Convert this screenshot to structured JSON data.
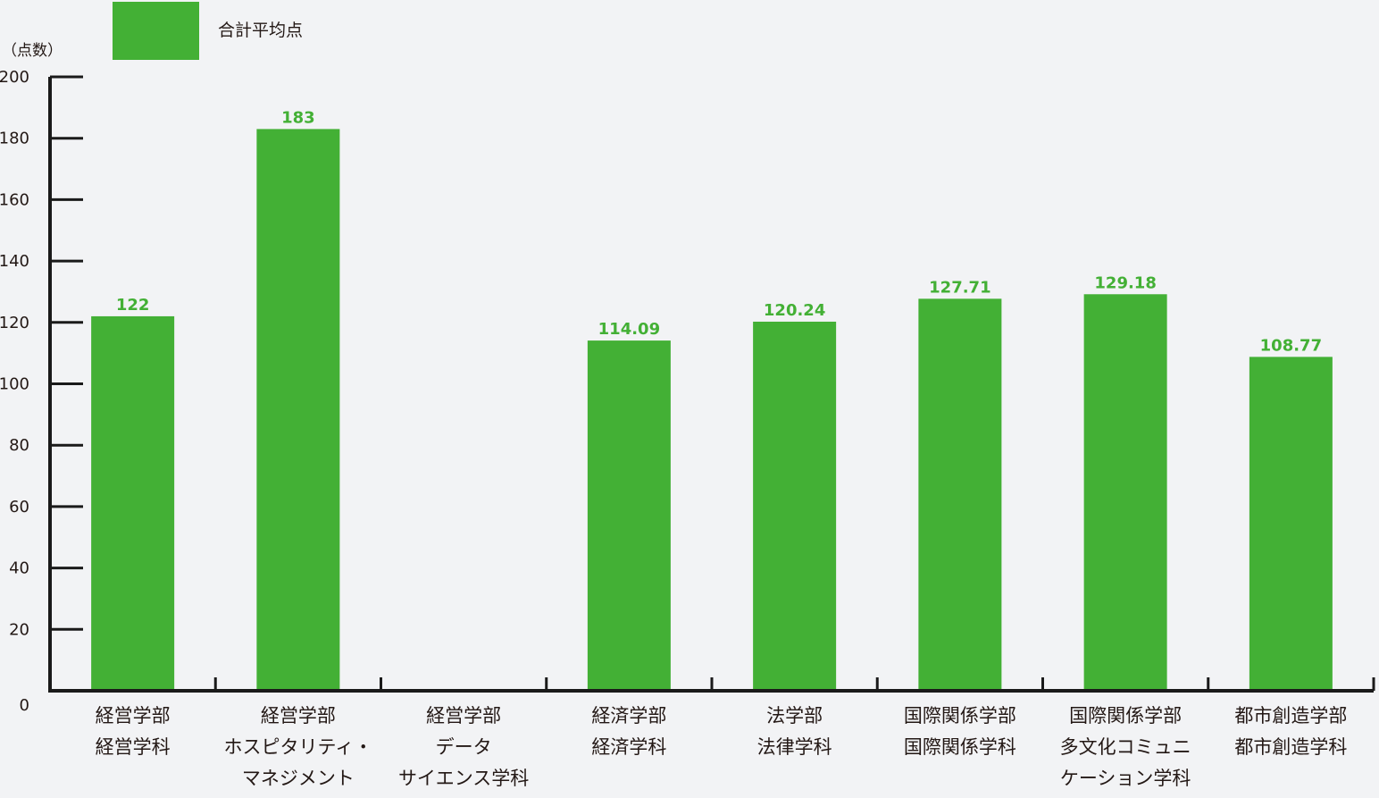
{
  "chart_data": {
    "type": "bar",
    "title": "",
    "xlabel": "",
    "ylabel": "（点数）",
    "ylim": [
      0,
      200
    ],
    "yticks": [
      0,
      20,
      40,
      60,
      80,
      100,
      120,
      140,
      160,
      180,
      200
    ],
    "grid": false,
    "legend_position": "top-left",
    "categories": [
      [
        "経営学部",
        "経営学科"
      ],
      [
        "経営学部",
        "ホスピタリティ・",
        "マネジメント"
      ],
      [
        "経営学部",
        "データ",
        "サイエンス学科"
      ],
      [
        "経済学部",
        "経済学科"
      ],
      [
        "法学部",
        "法律学科"
      ],
      [
        "国際関係学部",
        "国際関係学科"
      ],
      [
        "国際関係学部",
        "多文化コミュニ",
        "ケーション学科"
      ],
      [
        "都市創造学部",
        "都市創造学科"
      ]
    ],
    "series": [
      {
        "name": "合計平均点",
        "color": "#43b035",
        "values": [
          122,
          183,
          null,
          114.09,
          120.24,
          127.71,
          129.18,
          108.77
        ],
        "value_labels": [
          "122",
          "183",
          "",
          "114.09",
          "120.24",
          "127.71",
          "129.18",
          "108.77"
        ]
      }
    ],
    "axis_color": "#1a1a1a",
    "value_label_color": "#43b035",
    "text_color": "#231815"
  }
}
